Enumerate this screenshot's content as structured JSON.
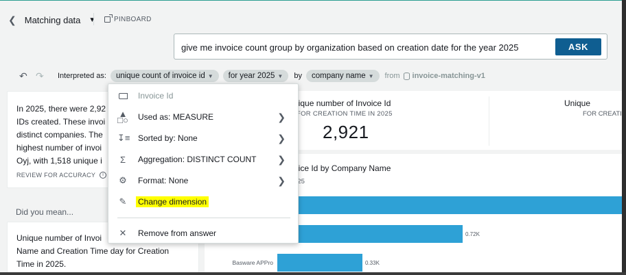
{
  "topbar": {
    "back_label": "Matching data",
    "pinboard_label": "PINBOARD"
  },
  "query": {
    "text": "give me invoice count group by organization based on creation date for the year 2025",
    "ask_label": "ASK"
  },
  "interpretation": {
    "label": "Interpreted as:",
    "chip_measure": "unique count of invoice id",
    "chip_filter": "for year 2025",
    "by_label": "by",
    "chip_group": "company name",
    "from_label": "from",
    "dataset": "invoice-matching-v1"
  },
  "narrative": {
    "text": "In 2025, there were 2,92\nIDs created. These invoi\ndistinct companies. The\nhighest number of invoi\nOyj, with 1,518 unique i",
    "review_label": "REVIEW FOR ACCURACY"
  },
  "did_you_mean": {
    "label": "Did you mean...",
    "suggestion": "Unique number of Invoi\nName and Creation Time day for Creation\nTime in 2025."
  },
  "kpi1": {
    "title": "nique number of Invoice Id",
    "subtitle": "FOR CREATION TIME IN 2025",
    "value": "2,921"
  },
  "kpi2": {
    "title": "Unique",
    "subtitle": "FOR CREATI"
  },
  "chart": {
    "title": "oice Id by Company Name",
    "subtitle": "025"
  },
  "chart_data": {
    "type": "bar",
    "categories": [
      "",
      "",
      "Basware APPro"
    ],
    "values": [
      null,
      0.72,
      0.33
    ],
    "data_labels": [
      "",
      "0.72K",
      "0.33K"
    ],
    "title": "oice Id by Company Name",
    "xlabel": "",
    "ylabel": ""
  },
  "menu": {
    "field_name": "Invoice Id",
    "used_as": "Used as: MEASURE",
    "sorted_by": "Sorted by: None",
    "aggregation": "Aggregation: DISTINCT COUNT",
    "format": "Format: None",
    "change_dimension": "Change dimension",
    "remove": "Remove from answer"
  },
  "colors": {
    "ask_button": "#0f5e91",
    "bar": "#2ea1d6",
    "highlight": "#ffff00"
  }
}
